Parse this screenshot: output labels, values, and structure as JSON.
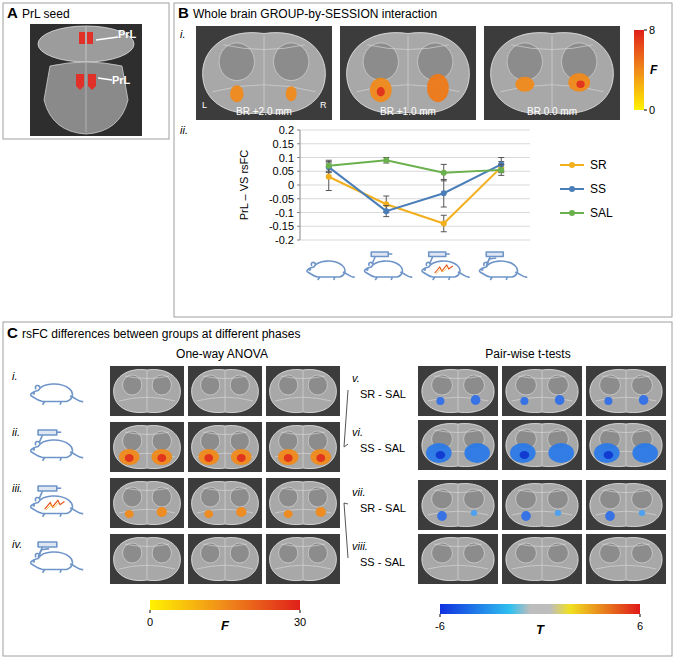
{
  "panels": {
    "a": {
      "label": "A",
      "title": "PrL seed",
      "annotations": [
        "PrL",
        "PrL"
      ]
    },
    "b": {
      "label": "B",
      "title": "Whole brain GROUP-by-SESSION interaction",
      "subpanels": [
        "i.",
        "ii."
      ],
      "slices": [
        "BR +2.0 mm",
        "BR +1.0 mm",
        "BR 0.0 mm"
      ],
      "orientation_labels": [
        "L",
        "R"
      ],
      "colorbar": {
        "label": "F",
        "range": [
          0,
          8
        ],
        "ticks": [
          0,
          8
        ]
      }
    },
    "c": {
      "label": "C",
      "title": "rsFC differences between groups at different phases",
      "anova": {
        "heading": "One-way ANOVA",
        "rows": [
          "i.",
          "ii.",
          "iii.",
          "iv."
        ],
        "colorbar": {
          "label": "F",
          "range": [
            0,
            30
          ],
          "ticks": [
            0,
            30
          ]
        }
      },
      "ttests": {
        "heading": "Pair-wise t-tests",
        "rows": [
          {
            "label": "v.",
            "comparison": "SR - SAL"
          },
          {
            "label": "vi.",
            "comparison": "SS - SAL"
          },
          {
            "label": "vii.",
            "comparison": "SR - SAL"
          },
          {
            "label": "viii.",
            "comparison": "SS - SAL"
          }
        ],
        "colorbar": {
          "label": "T",
          "range": [
            -6,
            6
          ],
          "ticks": [
            -6,
            6
          ]
        }
      }
    }
  },
  "chart_data": {
    "type": "line",
    "y_label": "PrL – VS rsFC",
    "categories": [
      null,
      null,
      null,
      null
    ],
    "series": [
      {
        "name": "SR",
        "color": "#f2b01e",
        "marker": "circle",
        "values": [
          0.03,
          -0.07,
          -0.14,
          0.065
        ],
        "errors": [
          0.05,
          0.03,
          0.03,
          0.02
        ]
      },
      {
        "name": "SS",
        "color": "#4a7eb8",
        "marker": "circle",
        "values": [
          0.065,
          -0.095,
          -0.03,
          0.075
        ],
        "errors": [
          0.02,
          0.02,
          0.05,
          0.025
        ]
      },
      {
        "name": "SAL",
        "color": "#6ab04c",
        "marker": "circle",
        "values": [
          0.07,
          0.09,
          0.045,
          0.055
        ],
        "errors": [
          0.02,
          0.01,
          0.03,
          0.02
        ]
      }
    ],
    "ylim": [
      -0.2,
      0.2
    ],
    "yticks": [
      -0.2,
      -0.15,
      -0.1,
      -0.05,
      0,
      0.05,
      0.1,
      0.15,
      0.2
    ],
    "grid": true,
    "legend": "right",
    "tick_labels": "y"
  }
}
